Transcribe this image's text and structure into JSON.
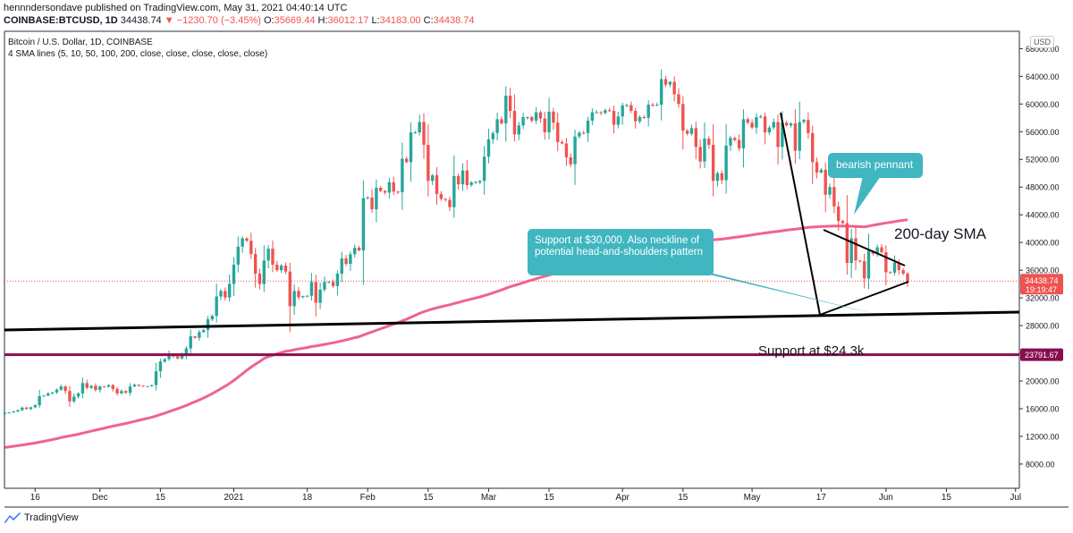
{
  "header": {
    "publish_line": "hennndersondave published on TradingView.com, May 31, 2021 04:40:14 UTC",
    "symbol": "COINBASE:BTCUSD, 1D",
    "last": "34438.74",
    "change": "−1230.70 (−3.45%)",
    "open_label": "O:",
    "open": "35669.44",
    "high_label": "H:",
    "high": "36012.17",
    "low_label": "L:",
    "low": "34183.00",
    "close_label": "C:",
    "close": "34438.74"
  },
  "legend": {
    "title": "Bitcoin / U.S. Dollar, 1D, COINBASE",
    "indicator": "4 SMA lines (5, 10, 50, 100, 200, close, close, close, close, close)"
  },
  "currency_badge": "USD",
  "footer": {
    "brand": "TradingView"
  },
  "colors": {
    "up": "#26a69a",
    "down": "#ef5350",
    "sma200": "#f06292",
    "callout": "#3fb6c0",
    "support_low": "#880e4f",
    "price_tag": "#ef5350"
  },
  "annotations": {
    "bearish_pennant": "bearish pennant",
    "support_30k": "Support at $30,000. Also neckline of potential head-and-shoulders pattern",
    "sma_label": "200-day SMA",
    "support_24k": "Support at $24.3k"
  },
  "chart_data": {
    "type": "candlestick",
    "ylim": [
      4500,
      70500
    ],
    "y_ticks": [
      8000,
      12000,
      16000,
      20000,
      24000,
      28000,
      32000,
      36000,
      40000,
      44000,
      48000,
      52000,
      56000,
      60000,
      64000,
      68000
    ],
    "y_tick_labels": [
      "8000.00",
      "12000.00",
      "16000.00",
      "20000.00",
      "24000.00",
      "28000.00",
      "32000.00",
      "36000.00",
      "40000.00",
      "44000.00",
      "48000.00",
      "52000.00",
      "56000.00",
      "60000.00",
      "64000.00",
      "68000.00"
    ],
    "x_ticks": [
      {
        "label": "16",
        "date": "2020-11-16"
      },
      {
        "label": "Dec",
        "date": "2020-12-01"
      },
      {
        "label": "15",
        "date": "2020-12-15"
      },
      {
        "label": "2021",
        "date": "2021-01-01"
      },
      {
        "label": "18",
        "date": "2021-01-18"
      },
      {
        "label": "Feb",
        "date": "2021-02-01"
      },
      {
        "label": "15",
        "date": "2021-02-15"
      },
      {
        "label": "Mar",
        "date": "2021-03-01"
      },
      {
        "label": "15",
        "date": "2021-03-15"
      },
      {
        "label": "Apr",
        "date": "2021-04-01"
      },
      {
        "label": "15",
        "date": "2021-04-15"
      },
      {
        "label": "May",
        "date": "2021-05-01"
      },
      {
        "label": "17",
        "date": "2021-05-17"
      },
      {
        "label": "Jun",
        "date": "2021-06-01"
      },
      {
        "label": "15",
        "date": "2021-06-15"
      },
      {
        "label": "Jul",
        "date": "2021-07-01"
      }
    ],
    "price_tag": {
      "value": 34438.74,
      "label": "34438.74",
      "countdown": "19:19:47"
    },
    "support_tag": {
      "value": 23791.67,
      "label": "23791.67"
    },
    "candles_start": "2020-11-09",
    "closes": [
      15400,
      15450,
      15600,
      15800,
      16150,
      15950,
      16200,
      16500,
      17800,
      17900,
      18200,
      18350,
      18750,
      19200,
      18550,
      17050,
      17750,
      18200,
      19700,
      19000,
      19300,
      18700,
      19200,
      19150,
      19400,
      18850,
      18200,
      18550,
      18300,
      19200,
      19450,
      19300,
      19250,
      19250,
      19400,
      21400,
      22800,
      23150,
      23900,
      23550,
      23250,
      23750,
      24700,
      26450,
      26250,
      27050,
      27350,
      28900,
      29400,
      32200,
      33000,
      32050,
      34000,
      36800,
      39400,
      40600,
      40250,
      38350,
      35500,
      34000,
      37400,
      39100,
      36800,
      36000,
      36650,
      35800,
      30800,
      33000,
      32100,
      32250,
      32300,
      34300,
      31300,
      33200,
      34300,
      34300,
      33700,
      35500,
      37700,
      36900,
      38300,
      39250,
      38850,
      46400,
      46500,
      44800,
      47900,
      47450,
      47200,
      48700,
      47350,
      47250,
      52100,
      51600,
      55900,
      55900,
      57400,
      54100,
      48900,
      49700,
      47000,
      46300,
      46150,
      45100,
      49600,
      48400,
      50400,
      48300,
      48700,
      48700,
      48900,
      52400,
      54900,
      55800,
      57800,
      57200,
      61200,
      59000,
      55600,
      56900,
      58100,
      58100,
      57600,
      58800,
      57900,
      55900,
      58900,
      57300,
      54500,
      54300,
      52300,
      51300,
      55300,
      55850,
      55800,
      57600,
      58800,
      58800,
      58700,
      59100,
      59000,
      57000,
      58200,
      59800,
      59850,
      59000,
      57500,
      58100,
      58000,
      59900,
      59800,
      59900,
      63600,
      62800,
      63200,
      61400,
      60000,
      56150,
      55700,
      56500,
      53800,
      51700,
      55000,
      54100,
      48900,
      50000,
      49000,
      54000,
      55100,
      54800,
      53600,
      57800,
      57300,
      56600,
      58100,
      58200,
      55900,
      56600,
      57400,
      53800,
      57300,
      56900,
      57200,
      53250,
      57400,
      57700,
      55800,
      51600,
      50100,
      50500,
      46900,
      48000,
      45200,
      43100,
      42800,
      37050,
      40600,
      37400,
      37300,
      34800,
      38800,
      38400,
      39300,
      38600,
      35700,
      35650,
      37100,
      36000,
      35500,
      34400
    ]
  }
}
